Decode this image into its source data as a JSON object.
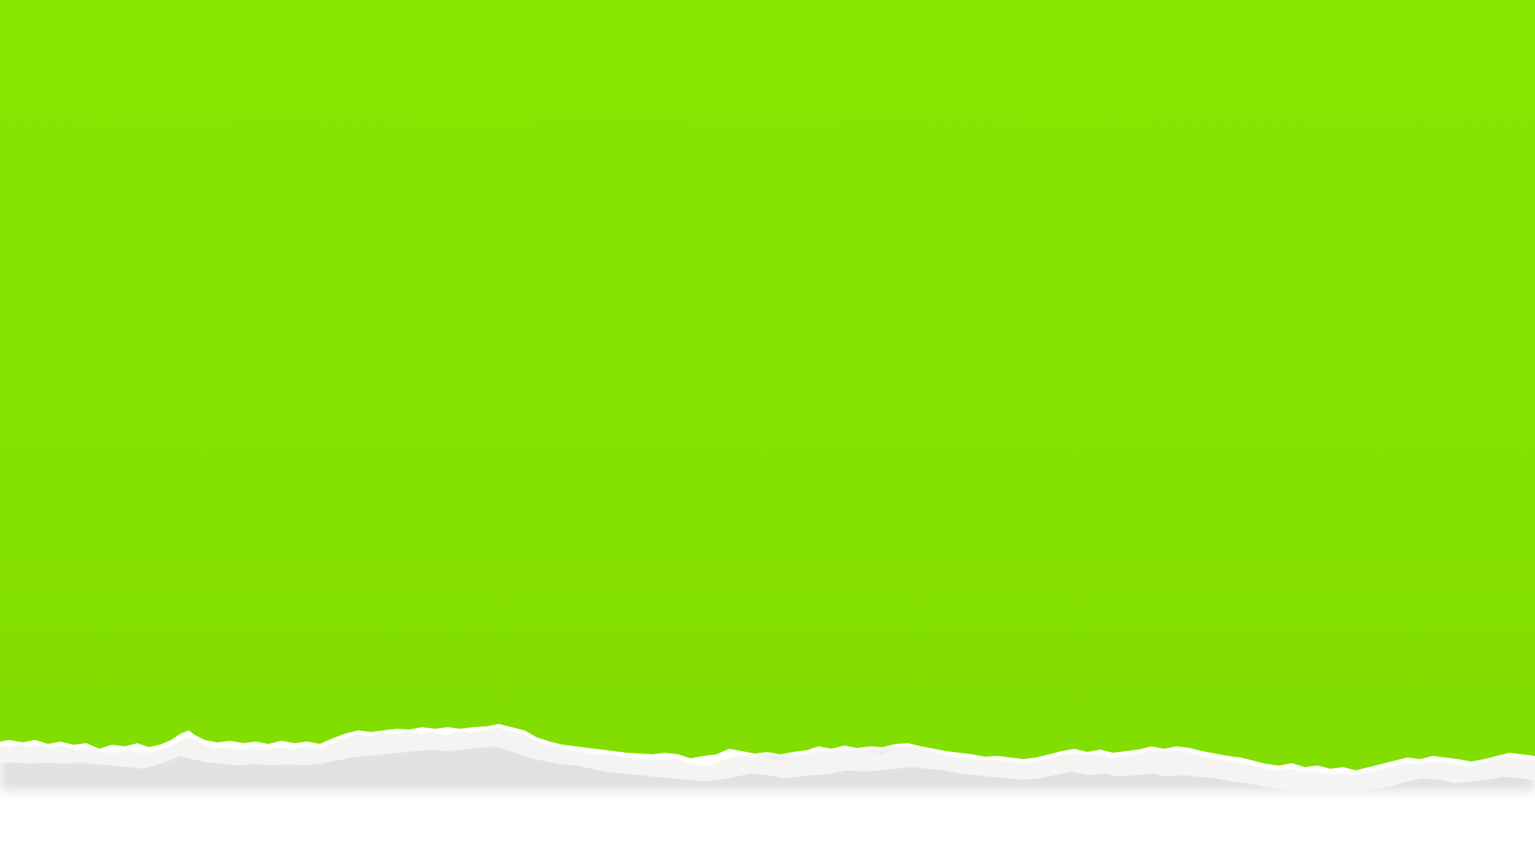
{
  "scene": {
    "description_kind": "background-graphic",
    "colors": {
      "paper_green": "#88E600",
      "paper_green_shade": "#82DD00",
      "torn_edge_white": "#F4F4F2",
      "torn_edge_shadow": "#BDBDBD",
      "background_white": "#FFFFFF"
    },
    "texts": []
  }
}
